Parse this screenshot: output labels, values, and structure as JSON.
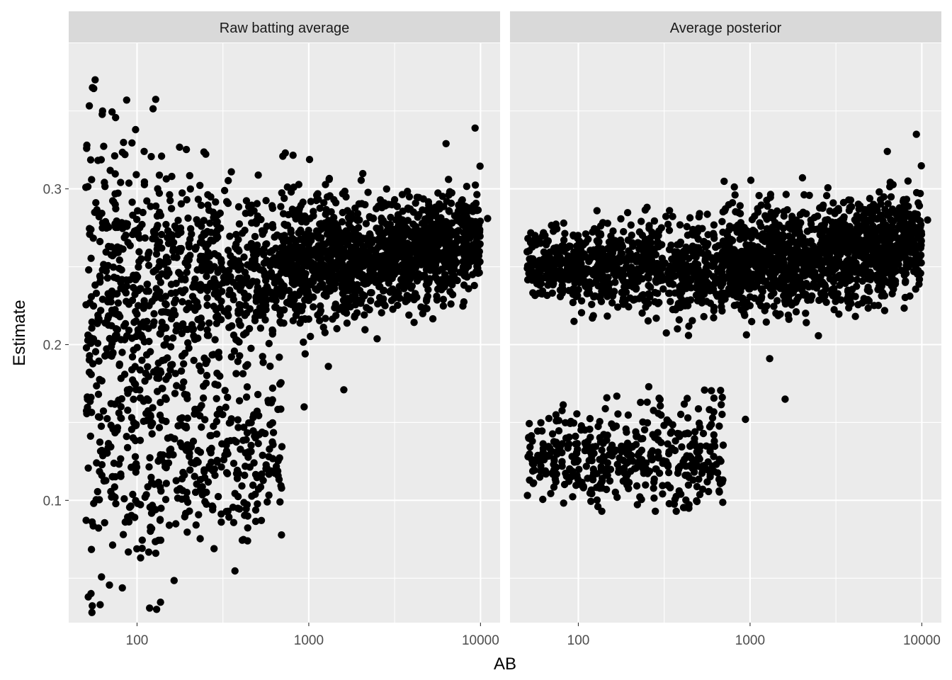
{
  "chart_data": {
    "type": "scatter",
    "xlabel": "AB",
    "ylabel": "Estimate",
    "x_scale": "log10",
    "xlim": [
      40,
      13000
    ],
    "ylim": [
      0.0215,
      0.3935
    ],
    "x_ticks": [
      100,
      1000,
      10000
    ],
    "x_tick_labels": [
      "100",
      "1000",
      "10000"
    ],
    "y_ticks": [
      0.1,
      0.2,
      0.3
    ],
    "y_tick_labels": [
      "0.1",
      "0.2",
      "0.3"
    ],
    "grid": true,
    "point_color": "#000000",
    "panel_background": "#ebebeb",
    "strip_background": "#d9d9d9",
    "point_count_per_panel": 2600,
    "panels": [
      {
        "strip_label": "Raw batting average",
        "key_points": [
          {
            "x": 57,
            "y": 0.37
          },
          {
            "x": 55,
            "y": 0.365
          },
          {
            "x": 87,
            "y": 0.357
          },
          {
            "x": 63,
            "y": 0.35
          },
          {
            "x": 98,
            "y": 0.338
          },
          {
            "x": 51,
            "y": 0.328
          },
          {
            "x": 110,
            "y": 0.324
          },
          {
            "x": 85,
            "y": 0.322
          },
          {
            "x": 730,
            "y": 0.323
          },
          {
            "x": 9300,
            "y": 0.339
          },
          {
            "x": 6300,
            "y": 0.329
          },
          {
            "x": 11000,
            "y": 0.281
          },
          {
            "x": 1300,
            "y": 0.186
          },
          {
            "x": 1600,
            "y": 0.171
          },
          {
            "x": 940,
            "y": 0.16
          },
          {
            "x": 680,
            "y": 0.099
          },
          {
            "x": 440,
            "y": 0.074
          },
          {
            "x": 130,
            "y": 0.03
          },
          {
            "x": 61,
            "y": 0.033
          },
          {
            "x": 52,
            "y": 0.038
          }
        ]
      },
      {
        "strip_label": "Average posterior",
        "key_points": [
          {
            "x": 9300,
            "y": 0.335
          },
          {
            "x": 6300,
            "y": 0.324
          },
          {
            "x": 10800,
            "y": 0.28
          },
          {
            "x": 9800,
            "y": 0.297
          },
          {
            "x": 1300,
            "y": 0.191
          },
          {
            "x": 1600,
            "y": 0.165
          },
          {
            "x": 940,
            "y": 0.152
          },
          {
            "x": 660,
            "y": 0.106
          },
          {
            "x": 440,
            "y": 0.095
          },
          {
            "x": 130,
            "y": 0.096
          },
          {
            "x": 52,
            "y": 0.255
          },
          {
            "x": 52,
            "y": 0.113
          }
        ]
      }
    ]
  }
}
